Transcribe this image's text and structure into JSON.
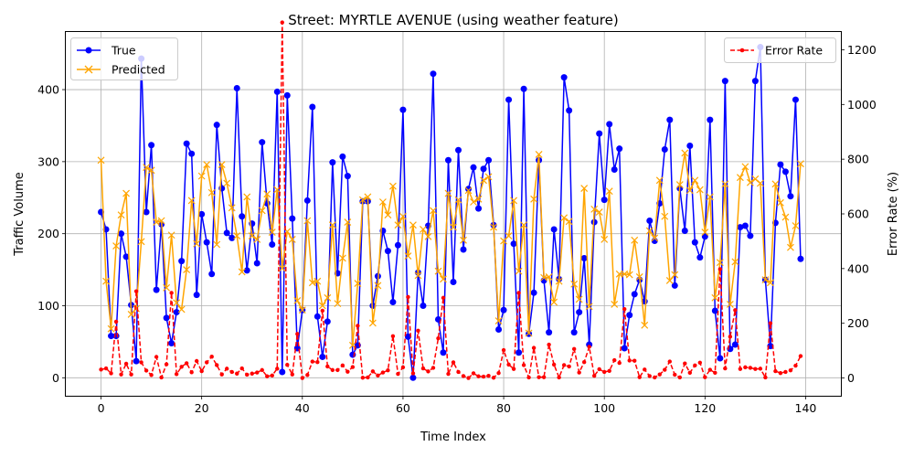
{
  "chart_data": {
    "type": "line",
    "title": "Street: MYRTLE AVENUE (using weather feature)",
    "xlabel": "Time Index",
    "ylabel": "Traffic Volume",
    "ylabel_right": "Error Rate (%)",
    "xlim": [
      -7,
      147
    ],
    "ylim": [
      -25,
      480
    ],
    "ylim_right": [
      -65,
      1265
    ],
    "x_ticks": [
      0,
      20,
      40,
      60,
      80,
      100,
      120,
      140
    ],
    "x_tick_labels": [
      "0",
      "20",
      "40",
      "60",
      "80",
      "100",
      "120",
      "140"
    ],
    "y_ticks": [
      0,
      100,
      200,
      300,
      400
    ],
    "y_tick_labels": [
      "0",
      "100",
      "200",
      "300",
      "400"
    ],
    "y_ticks_right": [
      0,
      200,
      400,
      600,
      800,
      1000,
      1200
    ],
    "y_tick_labels_right": [
      "0",
      "200",
      "400",
      "600",
      "800",
      "1000",
      "1200"
    ],
    "grid": true,
    "legend_left": "top-left",
    "legend_right": "top-right",
    "series": [
      {
        "name": "True",
        "color": "#0000ff",
        "axis": "left",
        "values": [
          230,
          206,
          58,
          58,
          200,
          168,
          101,
          23,
          443,
          230,
          323,
          122,
          213,
          83,
          48,
          91,
          162,
          325,
          311,
          115,
          227,
          188,
          144,
          351,
          263,
          201,
          194,
          402,
          224,
          149,
          214,
          159,
          327,
          242,
          185,
          397,
          8,
          392,
          221,
          41,
          94,
          246,
          376,
          85,
          29,
          78,
          299,
          145,
          307,
          280,
          32,
          45,
          245,
          245,
          100,
          141,
          204,
          176,
          105,
          184,
          372,
          57,
          0,
          146,
          100,
          211,
          422,
          81,
          35,
          302,
          133,
          316,
          178,
          262,
          292,
          235,
          290,
          302,
          212,
          67,
          94,
          386,
          186,
          35,
          401,
          61,
          118,
          302,
          135,
          63,
          206,
          137,
          417,
          371,
          63,
          91,
          166,
          46,
          216,
          339,
          247,
          352,
          289,
          318,
          41,
          87,
          116,
          136,
          106,
          218,
          190,
          242,
          317,
          358,
          128,
          263,
          204,
          322,
          188,
          167,
          196,
          358,
          93,
          27,
          412,
          40,
          46,
          209,
          211,
          197,
          412,
          459,
          136,
          44,
          215,
          296,
          286,
          252,
          386,
          165
        ]
      },
      {
        "name": "Predicted",
        "color": "#ffa500",
        "axis": "left",
        "values": [
          302,
          134,
          68,
          183,
          226,
          256,
          88,
          96,
          189,
          292,
          288,
          216,
          218,
          125,
          198,
          104,
          95,
          150,
          246,
          186,
          280,
          296,
          257,
          185,
          296,
          270,
          236,
          197,
          147,
          251,
          197,
          192,
          232,
          255,
          202,
          261,
          152,
          203,
          192,
          107,
          94,
          218,
          132,
          134,
          100,
          111,
          212,
          103,
          166,
          216,
          45,
          131,
          247,
          251,
          76,
          128,
          244,
          226,
          266,
          212,
          224,
          169,
          212,
          142,
          206,
          196,
          232,
          148,
          137,
          256,
          209,
          247,
          191,
          260,
          244,
          248,
          274,
          279,
          209,
          79,
          190,
          197,
          246,
          148,
          212,
          62,
          248,
          310,
          139,
          140,
          105,
          134,
          222,
          217,
          130,
          109,
          263,
          99,
          234,
          230,
          192,
          259,
          102,
          144,
          144,
          143,
          191,
          140,
          73,
          204,
          194,
          274,
          224,
          135,
          143,
          268,
          312,
          260,
          274,
          261,
          202,
          251,
          111,
          160,
          269,
          102,
          161,
          278,
          293,
          271,
          276,
          270,
          136,
          132,
          269,
          243,
          223,
          181,
          211,
          297
        ]
      },
      {
        "name": "Error Rate",
        "color": "#ff0000",
        "axis": "right",
        "values": [
          31,
          35,
          17,
          206,
          13,
          52,
          13,
          317,
          57,
          27,
          11,
          77,
          2,
          50,
          311,
          14,
          41,
          54,
          21,
          62,
          25,
          57,
          78,
          47,
          13,
          34,
          22,
          16,
          35,
          12,
          16,
          20,
          29,
          6,
          9,
          34,
          1300,
          48,
          13,
          161,
          0,
          11,
          60,
          58,
          246,
          42,
          29,
          29,
          46,
          23,
          40,
          191,
          1,
          2,
          24,
          9,
          20,
          28,
          153,
          15,
          39,
          296,
          17,
          173,
          35,
          24,
          37,
          145,
          293,
          15,
          57,
          22,
          7,
          0,
          17,
          6,
          5,
          8,
          1,
          18,
          102,
          49,
          33,
          311,
          47,
          2,
          110,
          3,
          3,
          122,
          49,
          2,
          47,
          42,
          106,
          20,
          58,
          114,
          8,
          32,
          22,
          26,
          65,
          55,
          252,
          64,
          63,
          3,
          31,
          7,
          2,
          13,
          30,
          60,
          12,
          2,
          53,
          19,
          46,
          56,
          3,
          30,
          19,
          398,
          35,
          151,
          248,
          33,
          39,
          37,
          33,
          34,
          2,
          200,
          25,
          18,
          22,
          28,
          45,
          80
        ]
      }
    ]
  }
}
